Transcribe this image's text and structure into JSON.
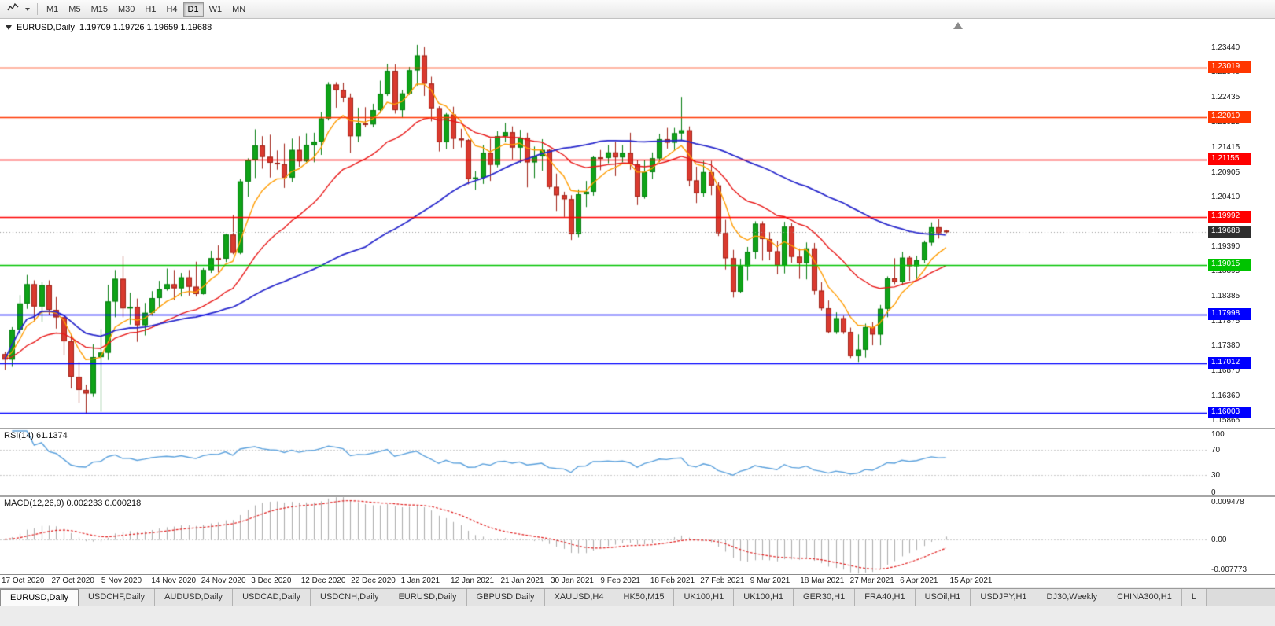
{
  "toolbar": {
    "chart_type_icon": "line-chart-icon",
    "dropdown_icon": "chevron-down-icon",
    "periods": [
      {
        "label": "M1",
        "active": false
      },
      {
        "label": "M5",
        "active": false
      },
      {
        "label": "M15",
        "active": false
      },
      {
        "label": "M30",
        "active": false
      },
      {
        "label": "H1",
        "active": false
      },
      {
        "label": "H4",
        "active": false
      },
      {
        "label": "D1",
        "active": true
      },
      {
        "label": "W1",
        "active": false
      },
      {
        "label": "MN",
        "active": false
      }
    ]
  },
  "chart": {
    "symbol_label": "EURUSD,Daily",
    "ohlc_label": "1.19709 1.19726 1.19659 1.19688",
    "current_price": 1.19688,
    "current_price_label": "1.19688",
    "current_price_badge_color": "#2e2e2e",
    "price_axis_labels": [
      "1.23440",
      "1.22940",
      "1.22435",
      "1.21925",
      "1.21415",
      "1.20905",
      "1.20410",
      "1.19900",
      "1.19390",
      "1.18895",
      "1.18385",
      "1.17875",
      "1.17380",
      "1.16870",
      "1.16360",
      "1.15865"
    ],
    "hlines": [
      {
        "price": 1.23019,
        "label": "1.23019",
        "color": "#ff3600"
      },
      {
        "price": 1.2201,
        "label": "1.22010",
        "color": "#ff3600"
      },
      {
        "price": 1.21155,
        "label": "1.21155",
        "color": "#fe0000"
      },
      {
        "price": 1.19992,
        "label": "1.19992",
        "color": "#fe0000"
      },
      {
        "price": 1.19015,
        "label": "1.19015",
        "color": "#00c300"
      },
      {
        "price": 1.17998,
        "label": "1.17998",
        "color": "#0000ff"
      },
      {
        "price": 1.17012,
        "label": "1.17012",
        "color": "#0000ff"
      },
      {
        "price": 1.16003,
        "label": "1.16003",
        "color": "#0000ff"
      }
    ],
    "colors": {
      "candle_up": "#0fa318",
      "candle_up_border": "#067d10",
      "candle_down": "#d93a2f",
      "candle_down_border": "#a02318",
      "current_price_line": "#9a9a9a"
    }
  },
  "chart_data": {
    "type": "candlestick",
    "symbol": "EURUSD",
    "timeframe": "Daily",
    "ohlc_current": {
      "open": 1.19709,
      "high": 1.19726,
      "low": 1.19659,
      "close": 1.19688
    },
    "ylim": [
      1.1568,
      1.2395
    ],
    "x_axis_dates": [
      "17 Oct 2020",
      "27 Oct 2020",
      "5 Nov 2020",
      "14 Nov 2020",
      "24 Nov 2020",
      "3 Dec 2020",
      "12 Dec 2020",
      "22 Dec 2020",
      "1 Jan 2021",
      "12 Jan 2021",
      "21 Jan 2021",
      "30 Jan 2021",
      "9 Feb 2021",
      "18 Feb 2021",
      "27 Feb 2021",
      "9 Mar 2021",
      "18 Mar 2021",
      "27 Mar 2021",
      "6 Apr 2021",
      "15 Apr 2021"
    ],
    "moving_averages": [
      {
        "period": 7,
        "color": "#ff9c00"
      },
      {
        "period": 21,
        "color": "#e81717"
      },
      {
        "period": 50,
        "color": "#2929cc"
      }
    ],
    "candles": [
      [
        1.172,
        1.1725,
        1.1688,
        1.1709
      ],
      [
        1.1709,
        1.1775,
        1.1694,
        1.177
      ],
      [
        1.177,
        1.184,
        1.176,
        1.1823
      ],
      [
        1.1823,
        1.1881,
        1.1812,
        1.1862
      ],
      [
        1.1862,
        1.187,
        1.1787,
        1.1817
      ],
      [
        1.1817,
        1.1866,
        1.1786,
        1.186
      ],
      [
        1.186,
        1.187,
        1.18,
        1.181
      ],
      [
        1.181,
        1.1836,
        1.1772,
        1.1795
      ],
      [
        1.1795,
        1.18,
        1.1718,
        1.1746
      ],
      [
        1.1746,
        1.1759,
        1.165,
        1.1674
      ],
      [
        1.1674,
        1.1704,
        1.1621,
        1.1647
      ],
      [
        1.1647,
        1.1658,
        1.16,
        1.164
      ],
      [
        1.164,
        1.174,
        1.1633,
        1.1714
      ],
      [
        1.1714,
        1.1771,
        1.1603,
        1.1723
      ],
      [
        1.1723,
        1.1861,
        1.1708,
        1.1827
      ],
      [
        1.1827,
        1.1891,
        1.1795,
        1.1873
      ],
      [
        1.1873,
        1.1919,
        1.1795,
        1.1813
      ],
      [
        1.1813,
        1.1845,
        1.178,
        1.1816
      ],
      [
        1.1816,
        1.1833,
        1.1745,
        1.1779
      ],
      [
        1.1779,
        1.1824,
        1.1758,
        1.1804
      ],
      [
        1.1804,
        1.1848,
        1.1798,
        1.1834
      ],
      [
        1.1834,
        1.1869,
        1.1814,
        1.1852
      ],
      [
        1.1852,
        1.1894,
        1.1849,
        1.1862
      ],
      [
        1.1862,
        1.1891,
        1.183,
        1.1854
      ],
      [
        1.1854,
        1.1885,
        1.1837,
        1.1876
      ],
      [
        1.1876,
        1.1891,
        1.1839,
        1.1857
      ],
      [
        1.1857,
        1.1908,
        1.1837,
        1.1842
      ],
      [
        1.1842,
        1.1895,
        1.1841,
        1.1891
      ],
      [
        1.1891,
        1.193,
        1.1885,
        1.1915
      ],
      [
        1.1915,
        1.1941,
        1.1886,
        1.1914
      ],
      [
        1.1914,
        1.1965,
        1.1907,
        1.1963
      ],
      [
        1.1963,
        1.2003,
        1.1923,
        1.1926
      ],
      [
        1.1926,
        1.2076,
        1.1923,
        1.2071
      ],
      [
        1.2071,
        1.2118,
        1.204,
        1.2115
      ],
      [
        1.2115,
        1.2177,
        1.2078,
        1.2144
      ],
      [
        1.2144,
        1.2163,
        1.2097,
        1.2121
      ],
      [
        1.2121,
        1.2166,
        1.2079,
        1.2109
      ],
      [
        1.2109,
        1.2134,
        1.2095,
        1.2106
      ],
      [
        1.2106,
        1.2148,
        1.2058,
        1.2079
      ],
      [
        1.2079,
        1.2158,
        1.207,
        1.2135
      ],
      [
        1.2135,
        1.2163,
        1.2101,
        1.2112
      ],
      [
        1.2112,
        1.2169,
        1.211,
        1.2145
      ],
      [
        1.2145,
        1.217,
        1.211,
        1.2152
      ],
      [
        1.2152,
        1.2212,
        1.2125,
        1.2199
      ],
      [
        1.2199,
        1.2273,
        1.2195,
        1.2268
      ],
      [
        1.2268,
        1.2273,
        1.2221,
        1.2257
      ],
      [
        1.2257,
        1.2272,
        1.2232,
        1.2242
      ],
      [
        1.2242,
        1.225,
        1.2129,
        1.2163
      ],
      [
        1.2163,
        1.2221,
        1.2151,
        1.2189
      ],
      [
        1.2189,
        1.2222,
        1.2181,
        1.2187
      ],
      [
        1.2187,
        1.2229,
        1.2181,
        1.2216
      ],
      [
        1.2216,
        1.2276,
        1.221,
        1.2249
      ],
      [
        1.2249,
        1.231,
        1.2245,
        1.2296
      ],
      [
        1.2296,
        1.2309,
        1.2209,
        1.2216
      ],
      [
        1.2216,
        1.2257,
        1.22,
        1.225
      ],
      [
        1.225,
        1.2304,
        1.2247,
        1.2297
      ],
      [
        1.2297,
        1.2349,
        1.2266,
        1.2327
      ],
      [
        1.2327,
        1.2344,
        1.2245,
        1.227
      ],
      [
        1.227,
        1.2284,
        1.2193,
        1.222
      ],
      [
        1.222,
        1.2224,
        1.2132,
        1.2151
      ],
      [
        1.2151,
        1.221,
        1.2137,
        1.2207
      ],
      [
        1.2207,
        1.2223,
        1.2137,
        1.2158
      ],
      [
        1.2158,
        1.2178,
        1.214,
        1.2155
      ],
      [
        1.2155,
        1.2157,
        1.2065,
        1.2076
      ],
      [
        1.2076,
        1.2092,
        1.2054,
        1.2079
      ],
      [
        1.2079,
        1.2145,
        1.2066,
        1.2129
      ],
      [
        1.2129,
        1.2158,
        1.2072,
        1.2105
      ],
      [
        1.2105,
        1.2173,
        1.21,
        1.2163
      ],
      [
        1.2163,
        1.219,
        1.2151,
        1.2171
      ],
      [
        1.2171,
        1.2183,
        1.2116,
        1.214
      ],
      [
        1.214,
        1.2176,
        1.2109,
        1.216
      ],
      [
        1.216,
        1.217,
        1.2059,
        1.211
      ],
      [
        1.211,
        1.2142,
        1.2078,
        1.2122
      ],
      [
        1.2122,
        1.2157,
        1.2093,
        1.2135
      ],
      [
        1.2135,
        1.2137,
        1.2056,
        1.206
      ],
      [
        1.206,
        1.2087,
        1.2011,
        1.2043
      ],
      [
        1.2043,
        1.205,
        1.1999,
        1.2035
      ],
      [
        1.2035,
        1.2043,
        1.1952,
        1.1964
      ],
      [
        1.1964,
        1.2055,
        1.1958,
        1.2045
      ],
      [
        1.2045,
        1.2072,
        1.2019,
        1.205
      ],
      [
        1.205,
        1.2123,
        1.2042,
        1.212
      ],
      [
        1.212,
        1.2135,
        1.2094,
        1.2119
      ],
      [
        1.2119,
        1.2145,
        1.2108,
        1.213
      ],
      [
        1.213,
        1.2152,
        1.2082,
        1.212
      ],
      [
        1.212,
        1.2145,
        1.211,
        1.2129
      ],
      [
        1.2129,
        1.217,
        1.2095,
        1.2106
      ],
      [
        1.2106,
        1.2114,
        1.2023,
        1.204
      ],
      [
        1.204,
        1.2114,
        1.2036,
        1.209
      ],
      [
        1.209,
        1.213,
        1.2076,
        1.2118
      ],
      [
        1.2118,
        1.2168,
        1.211,
        1.2157
      ],
      [
        1.2157,
        1.218,
        1.2138,
        1.215
      ],
      [
        1.215,
        1.218,
        1.2134,
        1.2169
      ],
      [
        1.2169,
        1.2243,
        1.2155,
        1.2175
      ],
      [
        1.2175,
        1.2183,
        1.2061,
        1.2073
      ],
      [
        1.2073,
        1.2101,
        1.2027,
        1.2047
      ],
      [
        1.2047,
        1.2113,
        1.204,
        1.209
      ],
      [
        1.209,
        1.2113,
        1.2043,
        1.2063
      ],
      [
        1.2063,
        1.2069,
        1.196,
        1.1966
      ],
      [
        1.1966,
        1.1993,
        1.1892,
        1.1915
      ],
      [
        1.1915,
        1.1932,
        1.1835,
        1.1847
      ],
      [
        1.1847,
        1.1914,
        1.1844,
        1.1899
      ],
      [
        1.1899,
        1.1938,
        1.187,
        1.1928
      ],
      [
        1.1928,
        1.199,
        1.1914,
        1.1985
      ],
      [
        1.1985,
        1.199,
        1.191,
        1.1954
      ],
      [
        1.1954,
        1.1968,
        1.1911,
        1.1929
      ],
      [
        1.1929,
        1.195,
        1.1882,
        1.19
      ],
      [
        1.19,
        1.1989,
        1.1884,
        1.1979
      ],
      [
        1.1979,
        1.1986,
        1.1906,
        1.1918
      ],
      [
        1.1918,
        1.1935,
        1.1873,
        1.1905
      ],
      [
        1.1905,
        1.1947,
        1.1872,
        1.1935
      ],
      [
        1.1935,
        1.1946,
        1.1841,
        1.1849
      ],
      [
        1.1849,
        1.1866,
        1.1809,
        1.1813
      ],
      [
        1.1813,
        1.1829,
        1.1762,
        1.1765
      ],
      [
        1.1765,
        1.1805,
        1.1761,
        1.1793
      ],
      [
        1.1793,
        1.1798,
        1.1761,
        1.1765
      ],
      [
        1.1765,
        1.1774,
        1.1712,
        1.1716
      ],
      [
        1.1716,
        1.176,
        1.1704,
        1.1729
      ],
      [
        1.1729,
        1.1782,
        1.1713,
        1.1775
      ],
      [
        1.1775,
        1.1785,
        1.1738,
        1.176
      ],
      [
        1.176,
        1.182,
        1.1738,
        1.1812
      ],
      [
        1.1812,
        1.1878,
        1.1795,
        1.1874
      ],
      [
        1.1874,
        1.1915,
        1.1862,
        1.1867
      ],
      [
        1.1867,
        1.1928,
        1.186,
        1.1916
      ],
      [
        1.1916,
        1.192,
        1.1869,
        1.1899
      ],
      [
        1.1899,
        1.192,
        1.1872,
        1.1911
      ],
      [
        1.1911,
        1.1951,
        1.1905,
        1.1947
      ],
      [
        1.1947,
        1.1988,
        1.194,
        1.1978
      ],
      [
        1.1978,
        1.1994,
        1.1955,
        1.1966
      ],
      [
        1.19709,
        1.19726,
        1.19659,
        1.19688
      ]
    ]
  },
  "rsi": {
    "label": "RSI(14) 61.1374",
    "period": 14,
    "value": 61.1374,
    "axis_labels": [
      "100",
      "70",
      "30",
      "0"
    ],
    "axis_values": [
      100,
      70,
      30,
      0
    ],
    "levels": [
      70,
      30
    ],
    "line_color": "#5aa0dc"
  },
  "macd": {
    "label": "MACD(12,26,9) 0.002233 0.000218",
    "fast": 12,
    "slow": 26,
    "signal": 9,
    "macd_value": 0.002233,
    "signal_value": 0.000218,
    "axis_labels": [
      "0.009478",
      "0.00",
      "-0.007773"
    ],
    "axis_values": [
      0.009478,
      0,
      -0.007773
    ],
    "histogram_color": "#ababab",
    "signal_color": "#e02020"
  },
  "tabs": [
    {
      "label": "EURUSD,Daily",
      "active": true
    },
    {
      "label": "USDCHF,Daily",
      "active": false
    },
    {
      "label": "AUDUSD,Daily",
      "active": false
    },
    {
      "label": "USDCAD,Daily",
      "active": false
    },
    {
      "label": "USDCNH,Daily",
      "active": false
    },
    {
      "label": "EURUSD,Daily",
      "active": false
    },
    {
      "label": "GBPUSD,Daily",
      "active": false
    },
    {
      "label": "XAUUSD,H4",
      "active": false
    },
    {
      "label": "HK50,M15",
      "active": false
    },
    {
      "label": "UK100,H1",
      "active": false
    },
    {
      "label": "UK100,H1",
      "active": false
    },
    {
      "label": "GER30,H1",
      "active": false
    },
    {
      "label": "FRA40,H1",
      "active": false
    },
    {
      "label": "USOil,H1",
      "active": false
    },
    {
      "label": "USDJPY,H1",
      "active": false
    },
    {
      "label": "DJ30,Weekly",
      "active": false
    },
    {
      "label": "CHINA300,H1",
      "active": false
    },
    {
      "label": "L",
      "active": false
    }
  ]
}
